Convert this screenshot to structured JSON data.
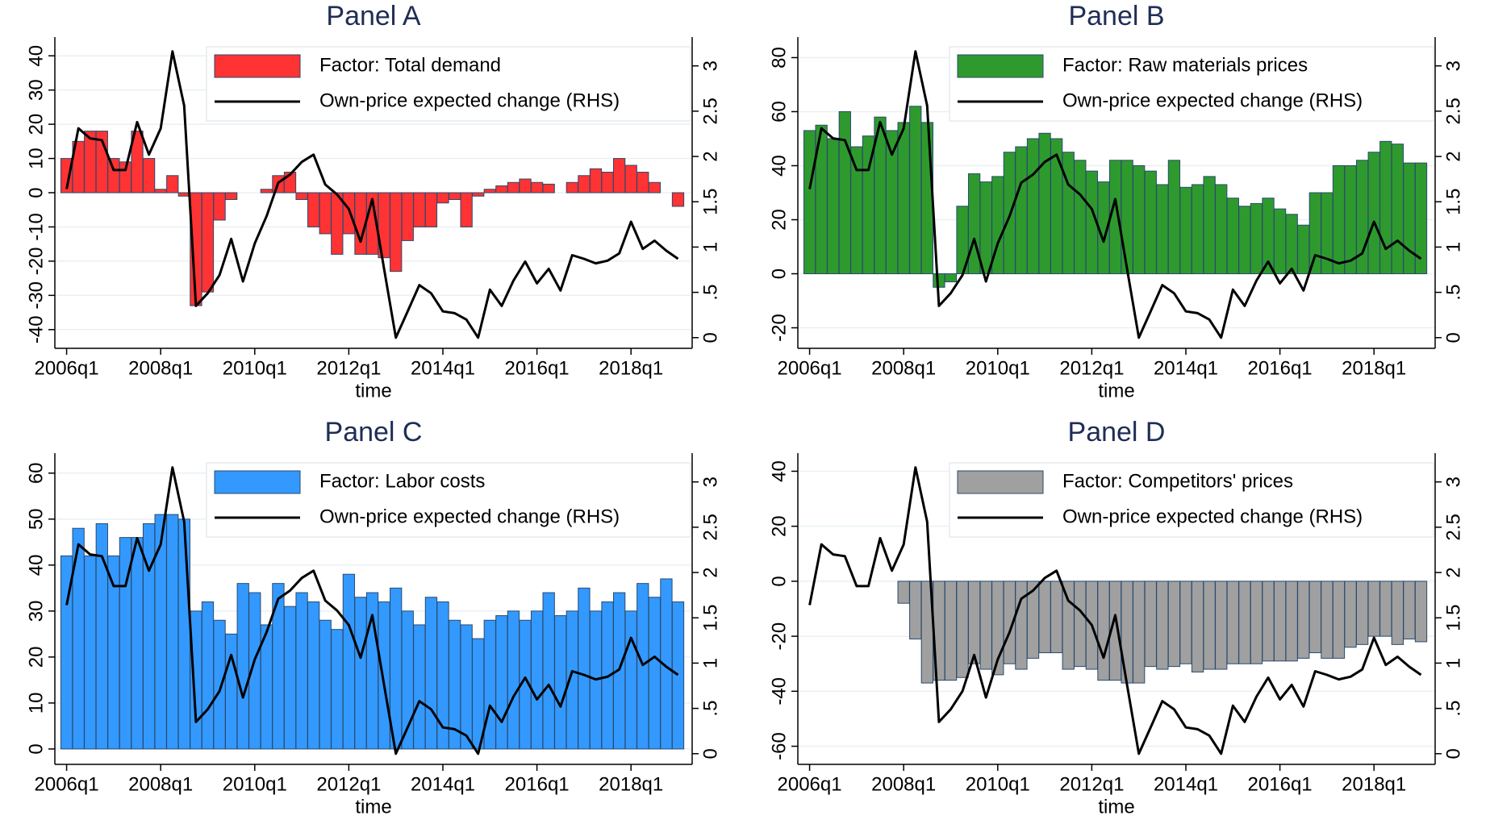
{
  "chart_data": [
    {
      "type": "bar",
      "title": "Panel A",
      "xlabel": "time",
      "categories": [
        "2006q1",
        null,
        null,
        null,
        null,
        null,
        null,
        null,
        "2008q1",
        null,
        null,
        null,
        null,
        null,
        null,
        null,
        "2010q1",
        null,
        null,
        null,
        null,
        null,
        null,
        null,
        "2012q1",
        null,
        null,
        null,
        null,
        null,
        null,
        null,
        "2014q1",
        null,
        null,
        null,
        null,
        null,
        null,
        null,
        "2016q1",
        null,
        null,
        null,
        null,
        null,
        null,
        null,
        "2018q1",
        null,
        null,
        null,
        null
      ],
      "series": [
        {
          "name": "Factor: Total demand",
          "type": "bar",
          "color": "#ff3333",
          "values": [
            10,
            15,
            18,
            18,
            10,
            9,
            18,
            10,
            1,
            5,
            -1,
            -33,
            -29,
            -8,
            -2,
            0,
            0,
            1,
            5,
            6,
            -2,
            -10,
            -12,
            -18,
            -12,
            -18,
            -18,
            -19,
            -23,
            -14,
            -10,
            -10,
            -3,
            -2,
            -10,
            -1,
            1,
            2,
            3,
            4,
            3,
            2.5,
            0,
            3,
            5,
            7,
            6,
            10,
            8,
            6,
            3,
            0,
            -4
          ]
        },
        {
          "name": "Own-price expected change (RHS)",
          "type": "line",
          "axis": "y2",
          "color": "#000000",
          "values": [
            1.64,
            2.31,
            2.2,
            2.18,
            1.85,
            1.85,
            2.38,
            2.02,
            2.31,
            3.16,
            2.56,
            0.35,
            0.49,
            0.69,
            1.09,
            0.62,
            1.04,
            1.34,
            1.71,
            1.8,
            1.94,
            2.02,
            1.69,
            1.58,
            1.42,
            1.06,
            1.53,
            0.76,
            0,
            0.29,
            0.58,
            0.49,
            0.29,
            0.27,
            0.2,
            0,
            0.53,
            0.35,
            0.63,
            0.84,
            0.6,
            0.76,
            0.52,
            0.91,
            0.87,
            0.82,
            0.85,
            0.93,
            1.28,
            0.98,
            1.07,
            0.96,
            0.87
          ]
        }
      ],
      "ylim": [
        -45,
        45
      ],
      "yticks": [
        -40,
        -30,
        -20,
        -10,
        0,
        10,
        20,
        30,
        40
      ],
      "y2lim": [
        -0.1,
        3.3
      ],
      "y2ticks": [
        0,
        {
          "value": 0.5,
          "label": ".5"
        },
        1,
        1.5,
        2,
        2.5,
        3
      ],
      "grid": true,
      "legend": "top-right"
    },
    {
      "type": "bar",
      "title": "Panel B",
      "xlabel": "time",
      "categories": [
        "2006q1",
        null,
        null,
        null,
        null,
        null,
        null,
        null,
        "2008q1",
        null,
        null,
        null,
        null,
        null,
        null,
        null,
        "2010q1",
        null,
        null,
        null,
        null,
        null,
        null,
        null,
        "2012q1",
        null,
        null,
        null,
        null,
        null,
        null,
        null,
        "2014q1",
        null,
        null,
        null,
        null,
        null,
        null,
        null,
        "2016q1",
        null,
        null,
        null,
        null,
        null,
        null,
        null,
        "2018q1",
        null,
        null,
        null,
        null
      ],
      "series": [
        {
          "name": "Factor: Raw materials prices",
          "type": "bar",
          "color": "#2e9a2e",
          "values": [
            53,
            55,
            50,
            60,
            47,
            51,
            58,
            53,
            56,
            62,
            56,
            -5,
            -3,
            25,
            37,
            34,
            36,
            45,
            47,
            50,
            52,
            50,
            45,
            42,
            38,
            34,
            42,
            42,
            40,
            38,
            33,
            42,
            32,
            33,
            36,
            33,
            28,
            25,
            26,
            28,
            24,
            22,
            18,
            30,
            30,
            40,
            40,
            42,
            45,
            49,
            48,
            41,
            41
          ]
        },
        {
          "name": "Own-price expected change (RHS)",
          "type": "line",
          "axis": "y2",
          "color": "#000000",
          "values": [
            1.64,
            2.31,
            2.2,
            2.18,
            1.85,
            1.85,
            2.38,
            2.02,
            2.31,
            3.16,
            2.56,
            0.35,
            0.49,
            0.69,
            1.09,
            0.62,
            1.04,
            1.34,
            1.71,
            1.8,
            1.94,
            2.02,
            1.69,
            1.58,
            1.42,
            1.06,
            1.53,
            0.76,
            0,
            0.29,
            0.58,
            0.49,
            0.29,
            0.27,
            0.2,
            0,
            0.53,
            0.35,
            0.63,
            0.84,
            0.6,
            0.76,
            0.52,
            0.91,
            0.87,
            0.82,
            0.85,
            0.93,
            1.28,
            0.98,
            1.07,
            0.96,
            0.87
          ]
        }
      ],
      "ylim": [
        -27,
        87
      ],
      "yticks": [
        -20,
        0,
        20,
        40,
        60,
        80
      ],
      "y2lim": [
        -0.1,
        3.3
      ],
      "y2ticks": [
        0,
        {
          "value": 0.5,
          "label": ".5"
        },
        1,
        1.5,
        2,
        2.5,
        3
      ],
      "grid": true,
      "legend": "top-right"
    },
    {
      "type": "bar",
      "title": "Panel C",
      "xlabel": "time",
      "categories": [
        "2006q1",
        null,
        null,
        null,
        null,
        null,
        null,
        null,
        "2008q1",
        null,
        null,
        null,
        null,
        null,
        null,
        null,
        "2010q1",
        null,
        null,
        null,
        null,
        null,
        null,
        null,
        "2012q1",
        null,
        null,
        null,
        null,
        null,
        null,
        null,
        "2014q1",
        null,
        null,
        null,
        null,
        null,
        null,
        null,
        "2016q1",
        null,
        null,
        null,
        null,
        null,
        null,
        null,
        "2018q1",
        null,
        null,
        null,
        null
      ],
      "series": [
        {
          "name": "Factor: Labor costs",
          "type": "bar",
          "color": "#3399ff",
          "values": [
            42,
            48,
            42,
            49,
            42,
            46,
            46,
            49,
            51,
            51,
            50,
            30,
            32,
            28,
            25,
            36,
            34,
            27,
            36,
            31,
            34,
            32,
            28,
            26,
            38,
            33,
            34,
            32,
            35,
            30,
            27,
            33,
            32,
            28,
            27,
            24,
            28,
            29,
            30,
            28,
            30,
            34,
            29,
            30,
            35,
            30,
            32,
            34,
            30,
            36,
            33,
            37,
            32
          ]
        },
        {
          "name": "Own-price expected change (RHS)",
          "type": "line",
          "axis": "y2",
          "color": "#000000",
          "values": [
            1.64,
            2.31,
            2.2,
            2.18,
            1.85,
            1.85,
            2.38,
            2.02,
            2.31,
            3.16,
            2.56,
            0.35,
            0.49,
            0.69,
            1.09,
            0.62,
            1.04,
            1.34,
            1.71,
            1.8,
            1.94,
            2.02,
            1.69,
            1.58,
            1.42,
            1.06,
            1.53,
            0.76,
            0,
            0.29,
            0.58,
            0.49,
            0.29,
            0.27,
            0.2,
            0,
            0.53,
            0.35,
            0.63,
            0.84,
            0.6,
            0.76,
            0.52,
            0.91,
            0.87,
            0.82,
            0.85,
            0.93,
            1.28,
            0.98,
            1.07,
            0.96,
            0.87
          ]
        }
      ],
      "ylim": [
        -3,
        64
      ],
      "yticks": [
        0,
        10,
        20,
        30,
        40,
        50,
        60
      ],
      "y2lim": [
        -0.1,
        3.3
      ],
      "y2ticks": [
        0,
        {
          "value": 0.5,
          "label": ".5"
        },
        1,
        1.5,
        2,
        2.5,
        3
      ],
      "grid": true,
      "legend": "top-right"
    },
    {
      "type": "bar",
      "title": "Panel D",
      "xlabel": "time",
      "categories": [
        "2006q1",
        null,
        null,
        null,
        null,
        null,
        null,
        null,
        "2008q1",
        null,
        null,
        null,
        null,
        null,
        null,
        null,
        "2010q1",
        null,
        null,
        null,
        null,
        null,
        null,
        null,
        "2012q1",
        null,
        null,
        null,
        null,
        null,
        null,
        null,
        "2014q1",
        null,
        null,
        null,
        null,
        null,
        null,
        null,
        "2016q1",
        null,
        null,
        null,
        null,
        null,
        null,
        null,
        "2018q1",
        null,
        null,
        null,
        null
      ],
      "series": [
        {
          "name": "Factor: Competitors' prices",
          "type": "bar",
          "color": "#a0a0a0",
          "values": [
            null,
            null,
            null,
            null,
            null,
            null,
            null,
            null,
            -8,
            -21,
            -37,
            -36,
            -36,
            -35,
            -30,
            -32,
            -34,
            -30,
            -32,
            -28,
            -26,
            -26,
            -32,
            -31,
            -32,
            -36,
            -36,
            -37,
            -37,
            -31,
            -32,
            -31,
            -30,
            -33,
            -32,
            -32,
            -30,
            -30,
            -30,
            -29,
            -29,
            -29,
            -28,
            -26,
            -28,
            -28,
            -24,
            -23,
            -20,
            -20,
            -23,
            -21,
            -22
          ]
        },
        {
          "name": "Own-price expected change (RHS)",
          "type": "line",
          "axis": "y2",
          "color": "#000000",
          "values": [
            1.64,
            2.31,
            2.2,
            2.18,
            1.85,
            1.85,
            2.38,
            2.02,
            2.31,
            3.16,
            2.56,
            0.35,
            0.49,
            0.69,
            1.09,
            0.62,
            1.04,
            1.34,
            1.71,
            1.8,
            1.94,
            2.02,
            1.69,
            1.58,
            1.42,
            1.06,
            1.53,
            0.76,
            0,
            0.29,
            0.58,
            0.49,
            0.29,
            0.27,
            0.2,
            0,
            0.53,
            0.35,
            0.63,
            0.84,
            0.6,
            0.76,
            0.52,
            0.91,
            0.87,
            0.82,
            0.85,
            0.93,
            1.28,
            0.98,
            1.07,
            0.96,
            0.87
          ]
        }
      ],
      "ylim": [
        -66,
        46
      ],
      "yticks": [
        -60,
        -40,
        -20,
        0,
        20,
        40
      ],
      "y2lim": [
        -0.1,
        3.3
      ],
      "y2ticks": [
        0,
        {
          "value": 0.5,
          "label": ".5"
        },
        1,
        1.5,
        2,
        2.5,
        3
      ],
      "grid": true,
      "legend": "top-right"
    }
  ]
}
